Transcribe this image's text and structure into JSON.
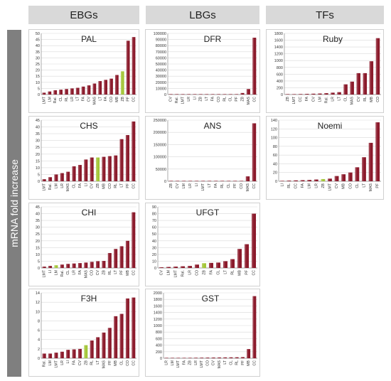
{
  "headers": {
    "ebg": "EBGs",
    "lbg": "LBGs",
    "tf": "TFs"
  },
  "y_axis_label": "mRNA fold increase",
  "colors": {
    "bar": "#8b1a2b",
    "highlight": "#a4c639",
    "header_bg": "#d9d9d9",
    "ylabel_bg": "#7f7f7f"
  },
  "chart_data": [
    {
      "type": "bar",
      "title": "PAL",
      "categories": [
        "LMT",
        "LM",
        "Ral.",
        "CL",
        "RL",
        "LR",
        "LT",
        "FA",
        "CV",
        "MAS",
        "LT",
        "FA",
        "CO",
        "MB",
        "ZB",
        "PF",
        "CC"
      ],
      "values": [
        1.5,
        2.5,
        3.5,
        4,
        4.5,
        5,
        5.5,
        6.5,
        7.5,
        9,
        11,
        12,
        13,
        16,
        19,
        44,
        47
      ],
      "highlight_index": 14,
      "ylim": [
        0,
        50
      ],
      "yticks": [
        0,
        5,
        10,
        15,
        20,
        25,
        30,
        35,
        40,
        45,
        50
      ]
    },
    {
      "type": "bar",
      "title": "DFR",
      "categories": [
        "CV",
        "Ral.",
        "LMT",
        "LR",
        "LI",
        "ZB",
        "LT",
        "FA",
        "CO",
        "RL",
        "CL",
        "PF",
        "ZB",
        "MAS",
        "CC"
      ],
      "values": [
        150,
        180,
        200,
        220,
        250,
        280,
        300,
        350,
        400,
        450,
        500,
        700,
        2500,
        9000,
        93000
      ],
      "highlight_index": null,
      "ylim": [
        0,
        100000
      ],
      "yticks": [
        0,
        10000,
        20000,
        30000,
        40000,
        50000,
        60000,
        70000,
        80000,
        90000,
        100000
      ]
    },
    {
      "type": "bar",
      "title": "Ruby",
      "categories": [
        "ZB",
        "LMT",
        "CC",
        "FA",
        "CV",
        "LM",
        "Ral.",
        "LR",
        "LT",
        "CL",
        "MAS",
        "CV",
        "RL",
        "MB",
        "CO"
      ],
      "values": [
        5,
        10,
        15,
        20,
        25,
        30,
        40,
        55,
        70,
        300,
        380,
        630,
        630,
        980,
        1660
      ],
      "highlight_index": null,
      "ylim": [
        0,
        1800
      ],
      "yticks": [
        0,
        200,
        400,
        600,
        800,
        1000,
        1200,
        1400,
        1600,
        1800
      ]
    },
    {
      "type": "bar",
      "title": "CHS",
      "categories": [
        "LMT",
        "Ral.",
        "LM",
        "LR",
        "MAS",
        "CL",
        "FA",
        "LI",
        "CV",
        "ZB",
        "MB",
        "CO",
        "RL",
        "LT",
        "PF",
        "CC"
      ],
      "values": [
        1.5,
        3,
        5,
        6,
        7,
        11,
        12,
        16,
        17.5,
        17.5,
        18,
        18.5,
        19,
        31,
        34,
        44
      ],
      "highlight_index": 9,
      "ylim": [
        0,
        45
      ],
      "yticks": [
        0,
        5,
        10,
        15,
        20,
        25,
        30,
        35,
        40,
        45
      ]
    },
    {
      "type": "bar",
      "title": "ANS",
      "categories": [
        "ZB",
        "CV",
        "LM",
        "LR",
        "LI",
        "LMT",
        "LT",
        "FA",
        "RL",
        "CL",
        "PF",
        "CO",
        "MAS",
        "CC"
      ],
      "values": [
        300,
        350,
        400,
        450,
        500,
        550,
        600,
        650,
        700,
        800,
        900,
        1500,
        20000,
        237000
      ],
      "highlight_index": null,
      "ylim": [
        0,
        250000
      ],
      "yticks": [
        0,
        50000,
        100000,
        150000,
        200000,
        250000
      ]
    },
    {
      "type": "bar",
      "title": "Noemi",
      "categories": [
        "LI",
        "RL",
        "CC",
        "FA",
        "LM",
        "LR",
        "ZB",
        "LMT",
        "CV",
        "MB",
        "CO",
        "CL",
        "LT",
        "MAS",
        "PF"
      ],
      "values": [
        1,
        1.5,
        2,
        2.5,
        3,
        4,
        5,
        6,
        12,
        16,
        20,
        32,
        55,
        88,
        135
      ],
      "highlight_index": 6,
      "ylim": [
        0,
        140
      ],
      "yticks": [
        0,
        20,
        40,
        60,
        80,
        100,
        120,
        140
      ]
    },
    {
      "type": "bar",
      "title": "CHI",
      "categories": [
        "LMT",
        "LI",
        "LM",
        "Ral.",
        "CL",
        "LR",
        "FA",
        "MAS",
        "CO",
        "CV",
        "ZB",
        "RL",
        "LT",
        "PF",
        "MB",
        "CC"
      ],
      "values": [
        1,
        1.5,
        2,
        2.5,
        3,
        3.3,
        3.6,
        4,
        4.5,
        5,
        5.2,
        11,
        14,
        16,
        20,
        41
      ],
      "highlight_index": 2,
      "ylim": [
        0,
        45
      ],
      "yticks": [
        0,
        5,
        10,
        15,
        20,
        25,
        30,
        35,
        40,
        45
      ]
    },
    {
      "type": "bar",
      "title": "UFGT",
      "categories": [
        "CV",
        "LM",
        "LMT",
        "Ral.",
        "LR",
        "CO",
        "ZB",
        "FA",
        "CL",
        "LT",
        "RL",
        "MB",
        "PF",
        "CC"
      ],
      "values": [
        1,
        1.5,
        2,
        2.5,
        3,
        5,
        7,
        7.5,
        8,
        10,
        13,
        28,
        35,
        80
      ],
      "highlight_index": 6,
      "ylim": [
        0,
        90
      ],
      "yticks": [
        0,
        10,
        20,
        30,
        40,
        50,
        60,
        70,
        80,
        90
      ]
    },
    {
      "type": "bar",
      "title": "F3H",
      "categories": [
        "Ral.",
        "LM",
        "LMT",
        "LR",
        "LI",
        "FA",
        "CV",
        "ZB",
        "RL",
        "LT",
        "MAS",
        "PF",
        "MB",
        "CL",
        "CO",
        "CC"
      ],
      "values": [
        1,
        1,
        1.2,
        1.4,
        1.8,
        1.9,
        2,
        2.8,
        3.8,
        4.5,
        5.5,
        6.5,
        9,
        9.5,
        12.8,
        13
      ],
      "highlight_index": 7,
      "ylim": [
        0,
        14
      ],
      "yticks": [
        0,
        2,
        4,
        6,
        8,
        10,
        12,
        14
      ]
    },
    {
      "type": "bar",
      "title": "GST",
      "categories": [
        "LR",
        "LM",
        "LMT",
        "FA",
        "ZB",
        "LR",
        "LMT",
        "CO",
        "CV",
        "MAS",
        "LT",
        "CL",
        "RL",
        "PF",
        "MB",
        "CC"
      ],
      "values": [
        5,
        8,
        10,
        12,
        14,
        16,
        18,
        20,
        22,
        24,
        26,
        28,
        30,
        35,
        280,
        1900
      ],
      "highlight_index": null,
      "ylim": [
        0,
        2000
      ],
      "yticks": [
        0,
        200,
        400,
        600,
        800,
        1000,
        1200,
        1400,
        1600,
        1800,
        2000
      ]
    }
  ]
}
